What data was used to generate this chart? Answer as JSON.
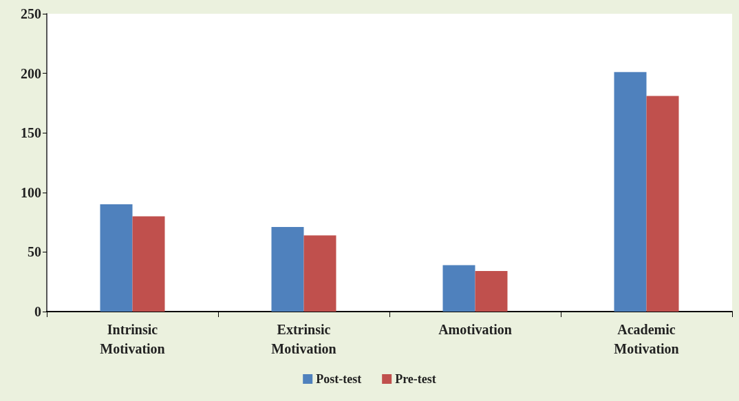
{
  "chart_data": {
    "type": "bar",
    "categories": [
      "Intrinsic\nMotivation",
      "Extrinsic\nMotivation",
      "Amotivation",
      "Academic\nMotivation"
    ],
    "series": [
      {
        "name": "Post-test",
        "color": "#4f81bd",
        "values": [
          90,
          71,
          39,
          201
        ]
      },
      {
        "name": "Pre-test",
        "color": "#c0504d",
        "values": [
          80,
          64,
          34,
          181
        ]
      }
    ],
    "ylim": [
      0,
      250
    ],
    "yticks": [
      0,
      50,
      100,
      150,
      200,
      250
    ],
    "grid": false,
    "legend": "bottom"
  }
}
